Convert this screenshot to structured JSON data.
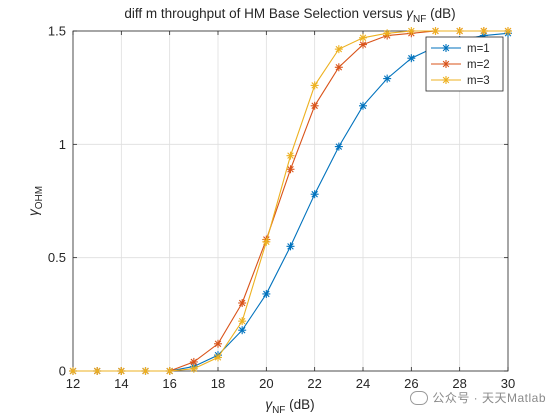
{
  "chart_data": {
    "type": "line",
    "title_main": "diff m throughput of HM Base Selection versus ",
    "title_sym": "γ",
    "title_sub": "NF",
    "title_unit": " (dB)",
    "xlabel_sym": "γ",
    "xlabel_sub": "NF",
    "xlabel_unit": " (dB)",
    "ylabel_sym": "γ",
    "ylabel_sub": "OHM",
    "xlim": [
      12,
      30
    ],
    "ylim": [
      0,
      1.5
    ],
    "x_ticks": [
      "12",
      "14",
      "16",
      "18",
      "20",
      "22",
      "24",
      "26",
      "28",
      "30"
    ],
    "y_ticks": [
      "0",
      "0.5",
      "1",
      "1.5"
    ],
    "grid": true,
    "legend_position": "top-right",
    "x": [
      12,
      13,
      14,
      15,
      16,
      17,
      18,
      19,
      20,
      21,
      22,
      23,
      24,
      25,
      26,
      27,
      28,
      29,
      30
    ],
    "series": [
      {
        "name": "m=1",
        "color": "#0072BD",
        "values": [
          0,
          0,
          0,
          0,
          0,
          0.02,
          0.07,
          0.18,
          0.34,
          0.55,
          0.78,
          0.99,
          1.17,
          1.29,
          1.38,
          1.43,
          1.46,
          1.48,
          1.49
        ]
      },
      {
        "name": "m=2",
        "color": "#D95319",
        "values": [
          0,
          0,
          0,
          0,
          0,
          0.04,
          0.12,
          0.3,
          0.58,
          0.89,
          1.17,
          1.34,
          1.44,
          1.48,
          1.49,
          1.5,
          1.5,
          1.5,
          1.5
        ]
      },
      {
        "name": "m=3",
        "color": "#EDB120",
        "values": [
          0,
          0,
          0,
          0,
          0,
          0.01,
          0.06,
          0.22,
          0.57,
          0.95,
          1.26,
          1.42,
          1.47,
          1.49,
          1.5,
          1.5,
          1.5,
          1.5,
          1.5
        ]
      }
    ]
  },
  "watermark": {
    "text": "公众号 · 天天Matlab",
    "icon": "wechat-icon"
  }
}
